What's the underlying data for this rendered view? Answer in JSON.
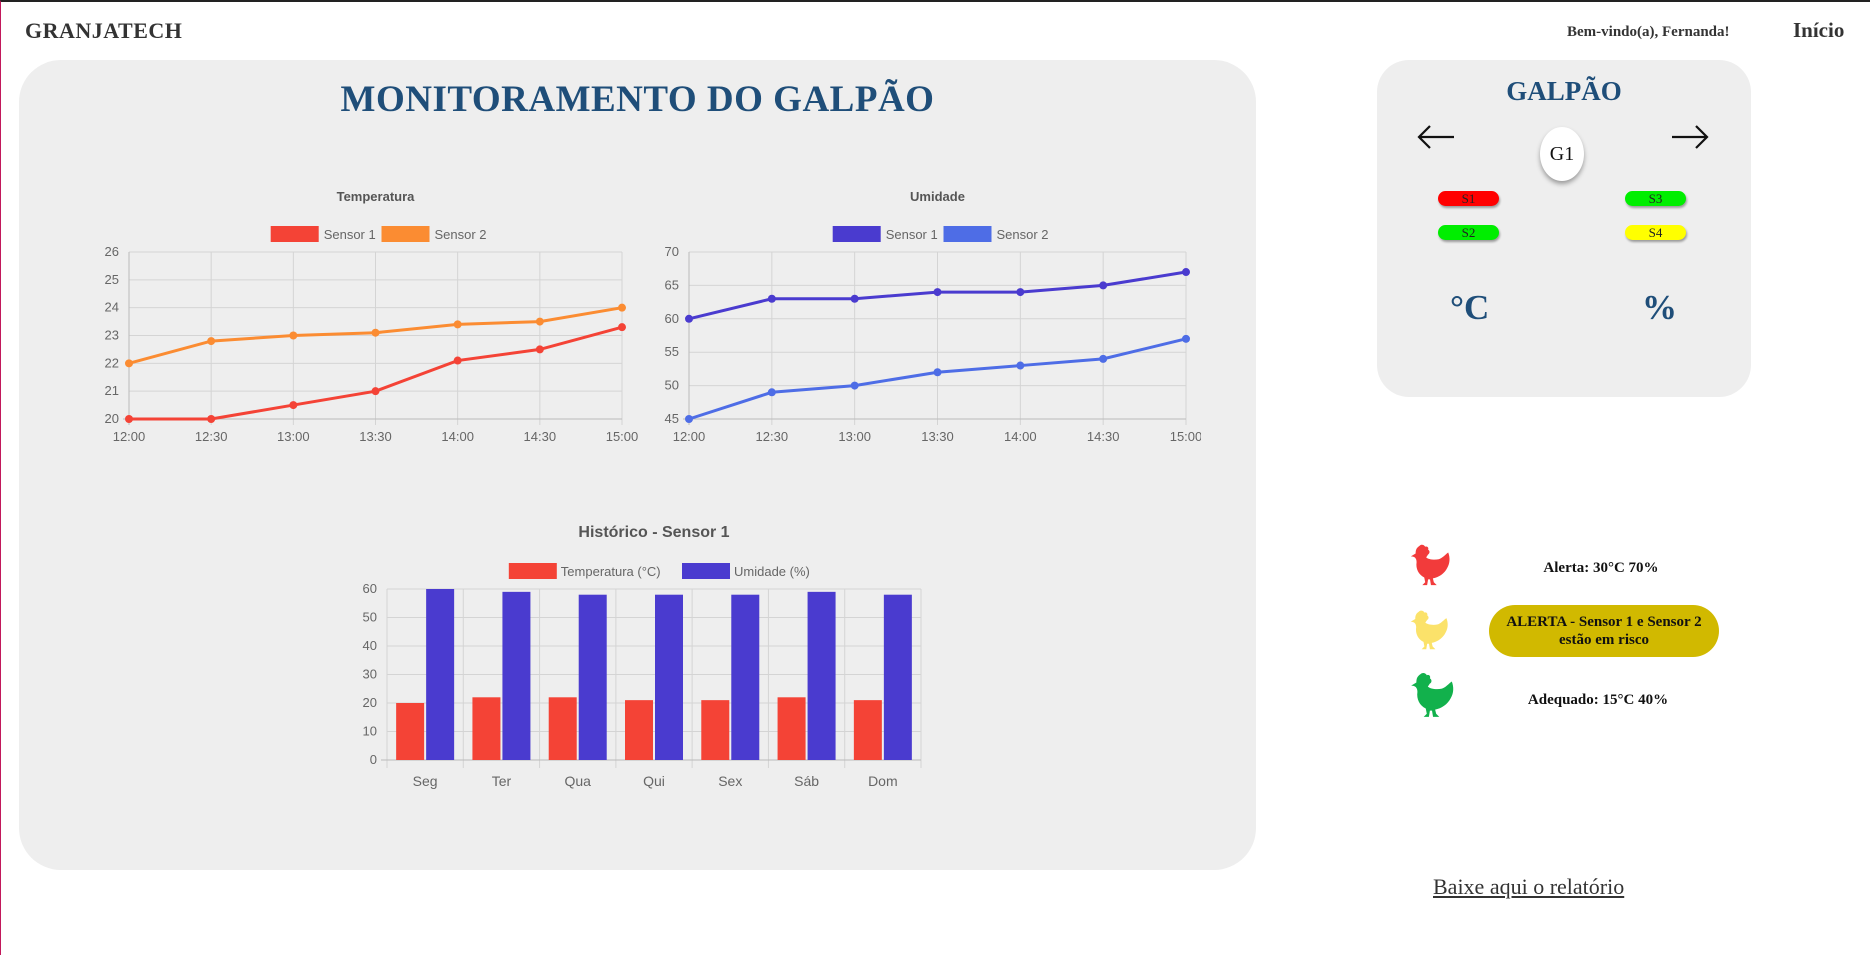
{
  "header": {
    "brand": "GRANJATECH",
    "welcome": "Bem-vindo(a), Fernanda!",
    "nav_home": "Início"
  },
  "main": {
    "title": "MONITORAMENTO DO GALPÃO"
  },
  "side": {
    "title": "GALPÃO",
    "galpao_label": "G1",
    "sensors": [
      {
        "label": "S1",
        "color": "#ff0000"
      },
      {
        "label": "S3",
        "color": "#00ee00"
      },
      {
        "label": "S2",
        "color": "#00ee00"
      },
      {
        "label": "S4",
        "color": "#ffff00"
      }
    ],
    "unit_temp": "°C",
    "unit_hum": "%"
  },
  "alerts": {
    "red_text": "Alerta: 30°C 70%",
    "yellow_text": "ALERTA - Sensor 1 e Sensor 2 estão em risco",
    "green_text": "Adequado: 15°C 40%",
    "colors": {
      "red": "#f23b3b",
      "yellow": "#fbe26a",
      "green": "#12b14c",
      "badge": "#d1b900"
    }
  },
  "download": {
    "label": "Baixe aqui o relatório"
  },
  "chart_data": [
    {
      "type": "line",
      "title": "Temperatura",
      "x": [
        "12:00",
        "12:30",
        "13:00",
        "13:30",
        "14:00",
        "14:30",
        "15:00"
      ],
      "series": [
        {
          "name": "Sensor 1",
          "color": "#f44336",
          "values": [
            20,
            20,
            20.5,
            21,
            22.1,
            22.5,
            23.3
          ]
        },
        {
          "name": "Sensor 2",
          "color": "#fb8c32",
          "values": [
            22,
            22.8,
            23,
            23.1,
            23.4,
            23.5,
            24
          ]
        }
      ],
      "ylim": [
        20,
        26
      ],
      "yticks": [
        "20",
        "21",
        "22",
        "23",
        "24",
        "25",
        "26"
      ],
      "legend": "top",
      "grid": true
    },
    {
      "type": "line",
      "title": "Umidade",
      "x": [
        "12:00",
        "12:30",
        "13:00",
        "13:30",
        "14:00",
        "14:30",
        "15:00"
      ],
      "series": [
        {
          "name": "Sensor 1",
          "color": "#4a3bcf",
          "values": [
            60,
            63,
            63,
            64,
            64,
            65,
            67
          ]
        },
        {
          "name": "Sensor 2",
          "color": "#4e6de6",
          "values": [
            45,
            49,
            50,
            52,
            53,
            54,
            57
          ]
        }
      ],
      "ylim": [
        45,
        70
      ],
      "yticks": [
        "45",
        "50",
        "55",
        "60",
        "65",
        "70"
      ],
      "legend": "top",
      "grid": true
    },
    {
      "type": "bar",
      "title": "Histórico - Sensor 1",
      "categories": [
        "Seg",
        "Ter",
        "Qua",
        "Qui",
        "Sex",
        "Sáb",
        "Dom"
      ],
      "series": [
        {
          "name": "Temperatura (°C)",
          "color": "#f44336",
          "values": [
            20,
            22,
            22,
            21,
            21,
            22,
            21
          ]
        },
        {
          "name": "Umidade (%)",
          "color": "#4a3bcf",
          "values": [
            60,
            59,
            58,
            58,
            58,
            59,
            58
          ]
        }
      ],
      "ylim": [
        0,
        60
      ],
      "yticks": [
        "0",
        "10",
        "20",
        "30",
        "40",
        "50",
        "60"
      ],
      "legend": "top",
      "grid": true
    }
  ]
}
